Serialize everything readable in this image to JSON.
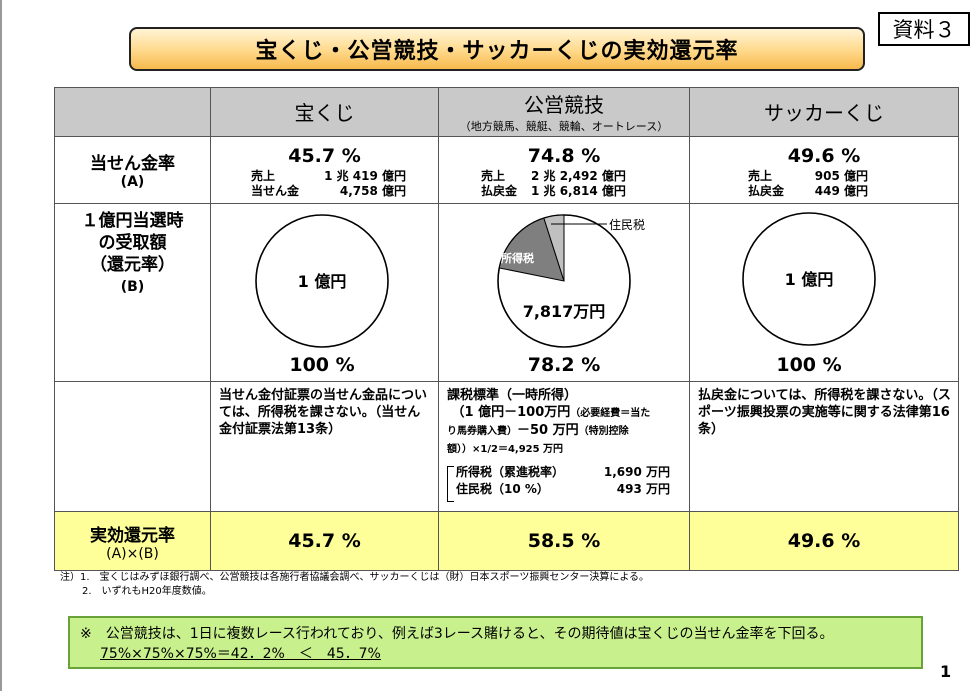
{
  "title": "宝くじ・公営競技・サッカーくじの実効還元率",
  "doc_label": "資料３",
  "header": {
    "col1": "宝くじ",
    "col2": "公営競技",
    "col2_sub": "（地方競馬、競艇、競輪、オートレース）",
    "col3": "サッカーくじ"
  },
  "row_payout": {
    "label": "当せん金率",
    "label_sub": "(A)",
    "lottery": {
      "pct": "45.7 %",
      "line1_k": "売上",
      "line1_v": "1 兆 419 億円",
      "line2_k": "当せん金",
      "line2_v": "4,758 億円"
    },
    "racing": {
      "pct": "74.8 %",
      "line1_k": "売上",
      "line1_v": "2 兆 2,492 億円",
      "line2_k": "払戻金",
      "line2_v": "1 兆 6,814 億円"
    },
    "soccer": {
      "pct": "49.6 %",
      "line1_k": "売上",
      "line1_v": "905 億円",
      "line2_k": "払戻金",
      "line2_v": "449 億円"
    }
  },
  "row_receive": {
    "label_l1": "１億円当選時",
    "label_l2": "の受取額",
    "label_l3": "（還元率）",
    "label_sub": "(B)",
    "lottery": {
      "pie_label": "1 億円",
      "pct": "100 %"
    },
    "racing": {
      "income_tax_label": "所得税",
      "resident_tax_label": "住民税",
      "amount_label": "7,817万円",
      "pct": "78.2 %",
      "income_tax_share": 0.169,
      "resident_tax_share": 0.0493
    },
    "soccer": {
      "pie_label": "1 億円",
      "pct": "100 %"
    }
  },
  "row_notes": {
    "lottery": "当せん金付証票の当せん金品については、所得税を課さない。（当せん金付証票法第13条）",
    "racing_l1": "課税標準（一時所得）",
    "racing_l2": "（1 億円－100万円",
    "racing_l2b": "（必要経費＝当た",
    "racing_l3": "り馬券購入費）",
    "racing_l3b": "－50 万円",
    "racing_l3c": "（特別控除",
    "racing_l4": "額））×1/2＝4,925 万円",
    "racing_tax1_k": "所得税（累進税率）",
    "racing_tax1_v": "1,690 万円",
    "racing_tax2_k": "住民税（10 %）",
    "racing_tax2_v": "493 万円",
    "soccer": "払戻金については、所得税を課さない。（スポーツ振興投票の実施等に関する法律第16条）"
  },
  "row_effective": {
    "label": "実効還元率",
    "label_sub": "(A)×(B)",
    "lottery": "45.7 %",
    "racing": "58.5 %",
    "soccer": "49.6 %"
  },
  "notes": {
    "n1": "注）1.　宝くじはみずほ銀行調べ、公営競技は各施行者協議会調べ、サッカーくじは（財）日本スポーツ振興センター決算による。",
    "n2": "2.　いずれもH20年度数値。"
  },
  "callout": {
    "line1": "※　公営競技は、1日に複数レース行われており、例えば3レース賭けると、その期待値は宝くじの当せん金率を下回る。",
    "line2": "75%×75%×75%＝42．2%　＜　45．7%"
  },
  "page_number": "1",
  "colors": {
    "header_gray": "#c9c9c9",
    "yellow_row": "#ffff99",
    "callout_green": "#c8f08c",
    "income_tax_gray": "#7f7f7f",
    "resident_tax_gray": "#c0c0c0"
  }
}
